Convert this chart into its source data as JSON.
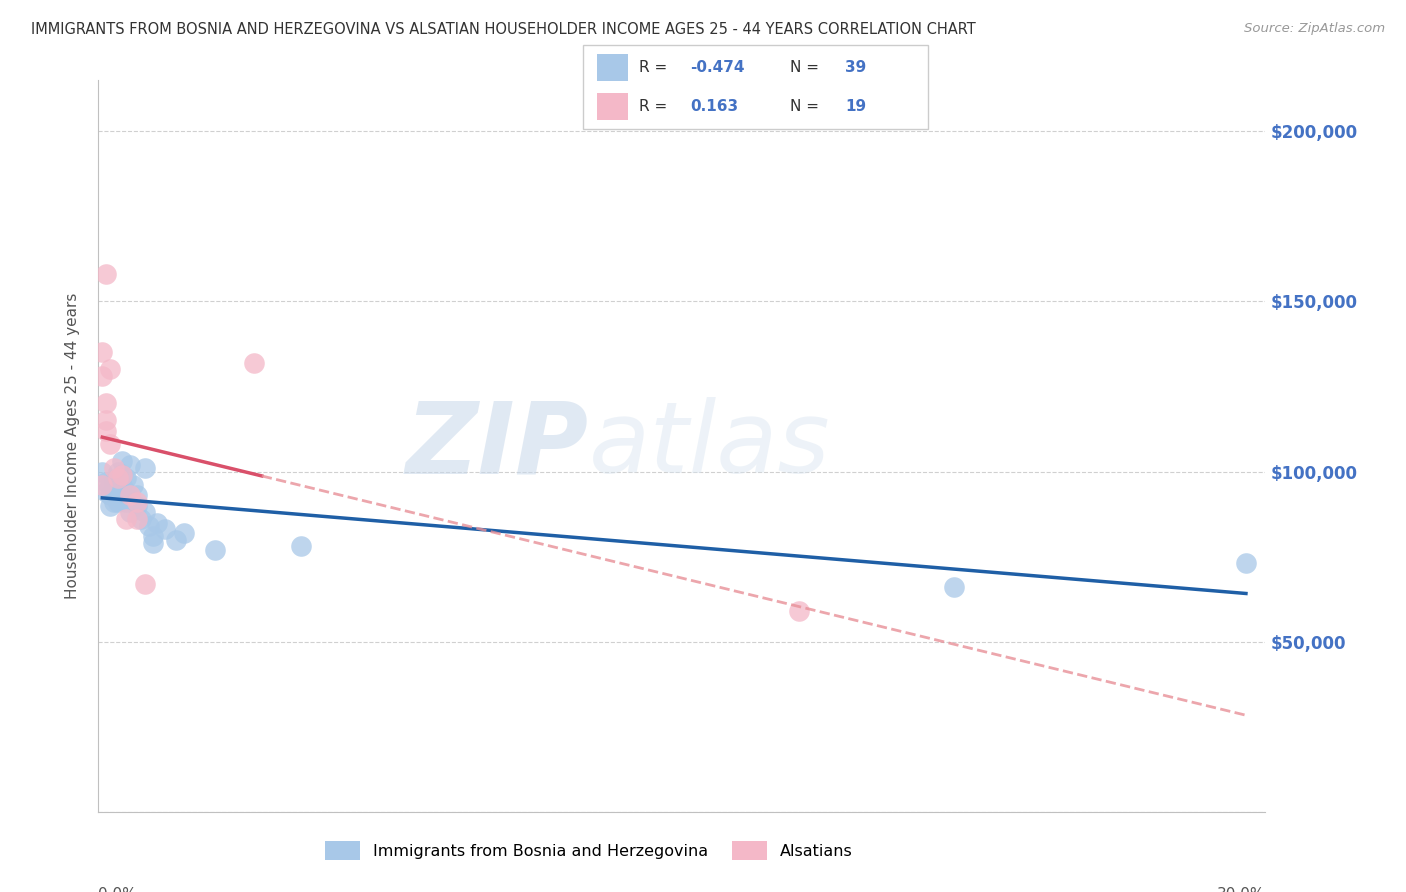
{
  "title": "IMMIGRANTS FROM BOSNIA AND HERZEGOVINA VS ALSATIAN HOUSEHOLDER INCOME AGES 25 - 44 YEARS CORRELATION CHART",
  "source": "Source: ZipAtlas.com",
  "ylabel": "Householder Income Ages 25 - 44 years",
  "y_ticks": [
    0,
    50000,
    100000,
    150000,
    200000
  ],
  "y_tick_labels_right": [
    "$50,000",
    "$100,000",
    "$150,000",
    "$200,000"
  ],
  "xlim": [
    0.0,
    0.3
  ],
  "ylim": [
    0,
    215000
  ],
  "blue_color": "#a8c8e8",
  "pink_color": "#f4b8c8",
  "blue_line_color": "#1f5fa6",
  "pink_line_color": "#d9506a",
  "pink_dash_color": "#e89098",
  "right_label_color": "#4472c4",
  "watermark_zip": "ZIP",
  "watermark_atlas": "atlas",
  "blue_points": [
    [
      0.001,
      100000
    ],
    [
      0.002,
      97000
    ],
    [
      0.002,
      94000
    ],
    [
      0.003,
      96000
    ],
    [
      0.003,
      93000
    ],
    [
      0.003,
      90000
    ],
    [
      0.004,
      97000
    ],
    [
      0.004,
      93000
    ],
    [
      0.004,
      91000
    ],
    [
      0.005,
      100000
    ],
    [
      0.005,
      96000
    ],
    [
      0.005,
      94000
    ],
    [
      0.005,
      91000
    ],
    [
      0.006,
      103000
    ],
    [
      0.006,
      99000
    ],
    [
      0.006,
      96000
    ],
    [
      0.006,
      92000
    ],
    [
      0.007,
      98000
    ],
    [
      0.007,
      94000
    ],
    [
      0.007,
      91000
    ],
    [
      0.008,
      102000
    ],
    [
      0.008,
      88000
    ],
    [
      0.009,
      96000
    ],
    [
      0.01,
      93000
    ],
    [
      0.01,
      90000
    ],
    [
      0.011,
      86000
    ],
    [
      0.012,
      101000
    ],
    [
      0.012,
      88000
    ],
    [
      0.013,
      84000
    ],
    [
      0.014,
      81000
    ],
    [
      0.014,
      79000
    ],
    [
      0.015,
      85000
    ],
    [
      0.017,
      83000
    ],
    [
      0.02,
      80000
    ],
    [
      0.022,
      82000
    ],
    [
      0.03,
      77000
    ],
    [
      0.052,
      78000
    ],
    [
      0.22,
      66000
    ],
    [
      0.295,
      73000
    ]
  ],
  "pink_points": [
    [
      0.001,
      135000
    ],
    [
      0.001,
      128000
    ],
    [
      0.002,
      158000
    ],
    [
      0.002,
      120000
    ],
    [
      0.002,
      115000
    ],
    [
      0.002,
      112000
    ],
    [
      0.003,
      130000
    ],
    [
      0.003,
      108000
    ],
    [
      0.004,
      101000
    ],
    [
      0.005,
      98000
    ],
    [
      0.006,
      99000
    ],
    [
      0.007,
      86000
    ],
    [
      0.008,
      93000
    ],
    [
      0.01,
      91000
    ],
    [
      0.01,
      86000
    ],
    [
      0.012,
      67000
    ],
    [
      0.04,
      132000
    ],
    [
      0.18,
      59000
    ],
    [
      0.001,
      96000
    ]
  ]
}
